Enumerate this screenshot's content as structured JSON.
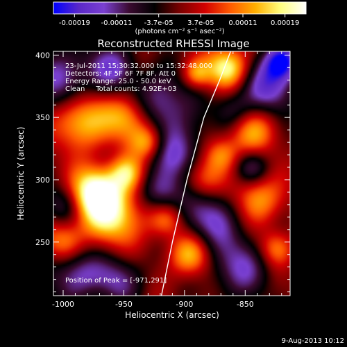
{
  "chart_data": {
    "type": "heatmap",
    "title": "Reconstructed RHESSI Image",
    "xlabel": "Heliocentric X (arcsec)",
    "ylabel": "Heliocentric Y (arcsec)",
    "xlim": [
      -1008,
      -813
    ],
    "ylim": [
      207,
      403
    ],
    "xticks": [
      -1000,
      -950,
      -900,
      -850
    ],
    "yticks": [
      250,
      300,
      350,
      400
    ],
    "colorbar": {
      "unit_label": "(photons cm⁻² s⁻¹ asec⁻²)",
      "ticks": [
        "-0.00019",
        "-0.00011",
        "-3.7e-05",
        "3.7e-05",
        "0.00011",
        "0.00019"
      ],
      "range": [
        -0.00019,
        0.00019
      ],
      "colormap": [
        "#0000ff",
        "#5a28c8",
        "#7a40d0",
        "#3a0a30",
        "#000000",
        "#7a0000",
        "#d20000",
        "#ff5a00",
        "#ffb000",
        "#ffff80",
        "#ffffff"
      ]
    },
    "info_lines": [
      "23-Jul-2011 15:30:32.000 to 15:32:48.000",
      "Detectors: 4F 5F 6F 7F 8F, Att 0",
      "Energy Range: 25.0 - 50.0 keV",
      "Clean     Total counts: 4.92E+03"
    ],
    "peak_label": "Position of Peak = [-971,291]",
    "peak": [
      -971,
      291
    ],
    "limb_curve": [
      [
        -919,
        207
      ],
      [
        -910,
        250
      ],
      [
        -898,
        300
      ],
      [
        -884,
        350
      ],
      [
        -871,
        380
      ],
      [
        -862,
        403
      ]
    ],
    "hot_spots": [
      [
        -985,
        348,
        16,
        0.75
      ],
      [
        -975,
        290,
        14,
        0.95
      ],
      [
        -960,
        272,
        18,
        0.8
      ],
      [
        -945,
        350,
        14,
        0.7
      ],
      [
        -930,
        330,
        10,
        0.6
      ],
      [
        -948,
        305,
        10,
        0.65
      ],
      [
        -895,
        240,
        12,
        0.7
      ],
      [
        -885,
        300,
        12,
        0.55
      ],
      [
        -865,
        390,
        12,
        0.9
      ],
      [
        -845,
        340,
        14,
        0.6
      ],
      [
        -870,
        320,
        10,
        0.55
      ],
      [
        -840,
        285,
        14,
        0.6
      ],
      [
        -825,
        245,
        10,
        0.5
      ],
      [
        -915,
        268,
        10,
        0.5
      ],
      [
        -890,
        385,
        8,
        0.55
      ],
      [
        -1000,
        250,
        12,
        0.55
      ]
    ],
    "cold_spots": [
      [
        -1000,
        380,
        18,
        0.6
      ],
      [
        -960,
        390,
        14,
        0.55
      ],
      [
        -920,
        360,
        18,
        0.65
      ],
      [
        -905,
        320,
        16,
        0.6
      ],
      [
        -920,
        290,
        12,
        0.55
      ],
      [
        -880,
        270,
        18,
        0.6
      ],
      [
        -855,
        230,
        18,
        0.55
      ],
      [
        -830,
        375,
        16,
        0.7
      ],
      [
        -820,
        395,
        10,
        0.9
      ],
      [
        -1000,
        280,
        12,
        0.45
      ],
      [
        -990,
        225,
        16,
        0.6
      ],
      [
        -955,
        220,
        14,
        0.5
      ],
      [
        -845,
        310,
        10,
        0.5
      ],
      [
        -860,
        355,
        12,
        0.45
      ]
    ]
  },
  "footer": {
    "date": "9-Aug-2013 10:12"
  }
}
